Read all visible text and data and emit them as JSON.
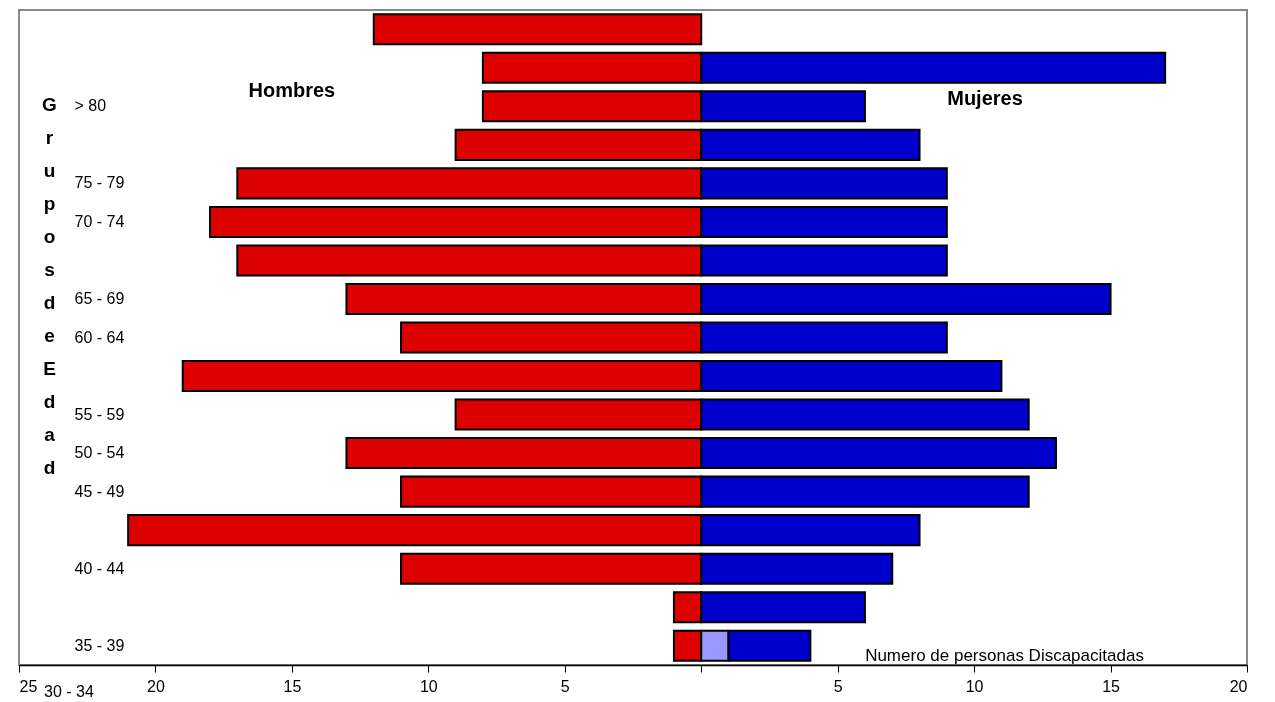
{
  "chart_data": {
    "type": "bar",
    "orientation": "horizontal",
    "stacked": true,
    "xlabel": "Numero de personas  Discapacitadas",
    "ylabel": "Grupos de Edad",
    "categories": [
      null,
      null,
      "> 80",
      null,
      "75 - 79",
      "70 - 74",
      null,
      "65 - 69",
      "60 - 64",
      null,
      "55 - 59",
      "50 - 54",
      "45 - 49",
      null,
      "40 - 44",
      null,
      "35 - 39"
    ],
    "series": [
      {
        "name": "Hombres",
        "color": "#dd0000",
        "values": [
          -12,
          -8,
          -8,
          -9,
          -17,
          -18,
          -17,
          -13,
          -11,
          -19,
          -9,
          -13,
          -11,
          -21,
          -11,
          -1,
          -1
        ]
      },
      {
        "color": "#9999ff",
        "values": [
          null,
          null,
          null,
          null,
          null,
          null,
          null,
          null,
          null,
          null,
          null,
          null,
          null,
          null,
          null,
          null,
          1
        ]
      },
      {
        "name": "Mujeres",
        "color": "#0000cc",
        "values": [
          null,
          17,
          6,
          8,
          9,
          9,
          9,
          15,
          9,
          11,
          12,
          13,
          12,
          8,
          7,
          6,
          3
        ]
      }
    ],
    "xlim": [
      -25,
      20
    ],
    "xticks": [
      {
        "value": -25,
        "label": "25"
      },
      {
        "value": -20,
        "label": "20"
      },
      {
        "value": -15,
        "label": "15"
      },
      {
        "value": -10,
        "label": "10"
      },
      {
        "value": -5,
        "label": "5"
      },
      {
        "value": 0,
        "label": null
      },
      5,
      10,
      15,
      20
    ],
    "annotations": [
      "30 - 34"
    ],
    "grid": false
  }
}
